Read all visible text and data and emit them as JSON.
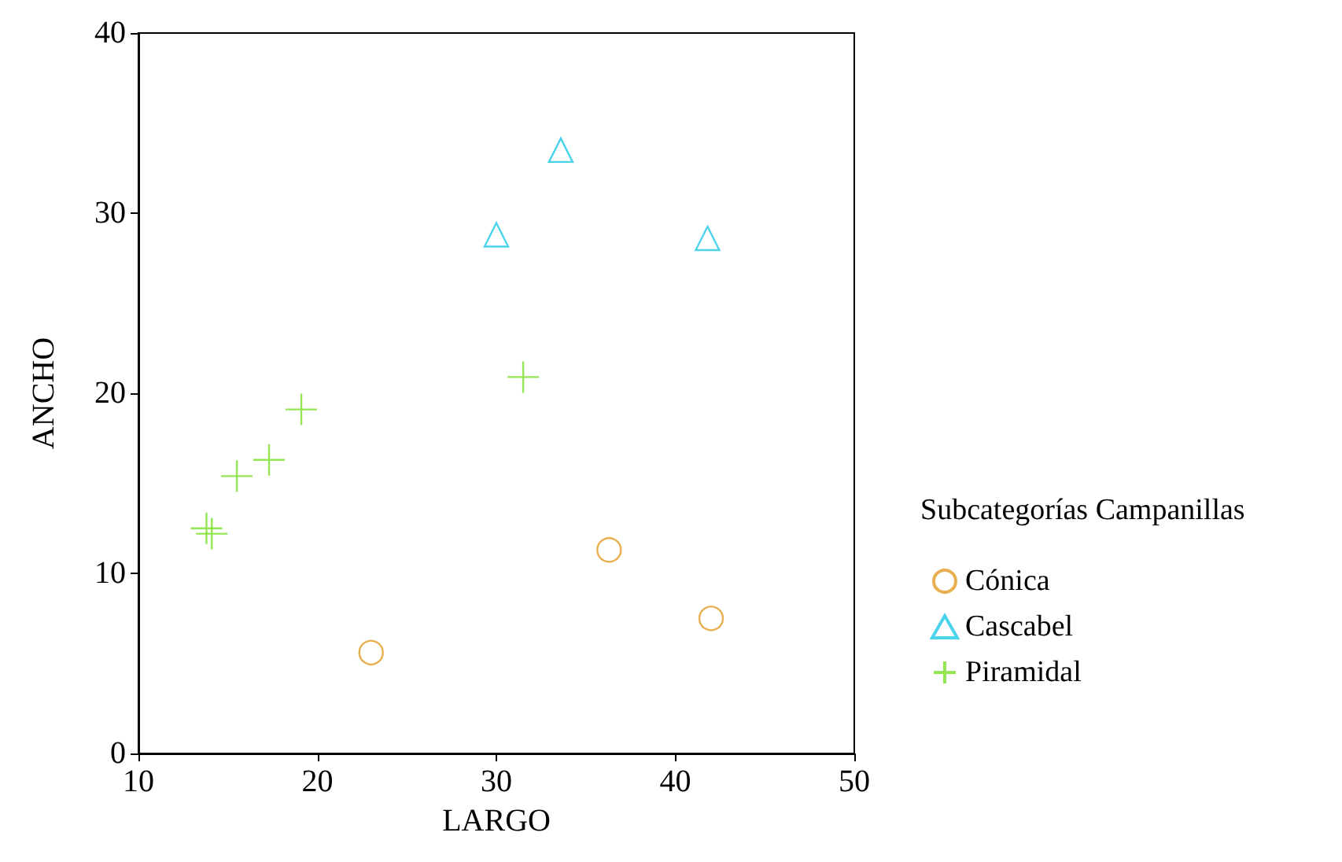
{
  "chart_data": {
    "type": "scatter",
    "xlabel": "LARGO",
    "ylabel": "ANCHO",
    "legend_title": "Subcategorías Campanillas",
    "legend": "right",
    "grid": false,
    "xlim": [
      10,
      50
    ],
    "xticks": [
      10,
      20,
      30,
      40,
      50
    ],
    "ylim": [
      0,
      40
    ],
    "yticks": [
      0,
      10,
      20,
      30,
      40
    ],
    "series": [
      {
        "name": "Cónica",
        "color": "#e39b23",
        "marker": "circle",
        "x": [
          23.0,
          36.3,
          42.0
        ],
        "values": [
          5.6,
          11.3,
          7.5
        ]
      },
      {
        "name": "Cascabel",
        "color": "#1ec8e6",
        "marker": "triangle",
        "x": [
          30.0,
          33.6,
          41.8
        ],
        "values": [
          28.8,
          33.5,
          28.6
        ]
      },
      {
        "name": "Piramidal",
        "color": "#7be02a",
        "marker": "cross",
        "x": [
          13.8,
          14.1,
          15.5,
          17.3,
          19.1,
          31.5
        ],
        "values": [
          12.5,
          12.2,
          15.4,
          16.3,
          19.1,
          20.9
        ]
      }
    ]
  }
}
